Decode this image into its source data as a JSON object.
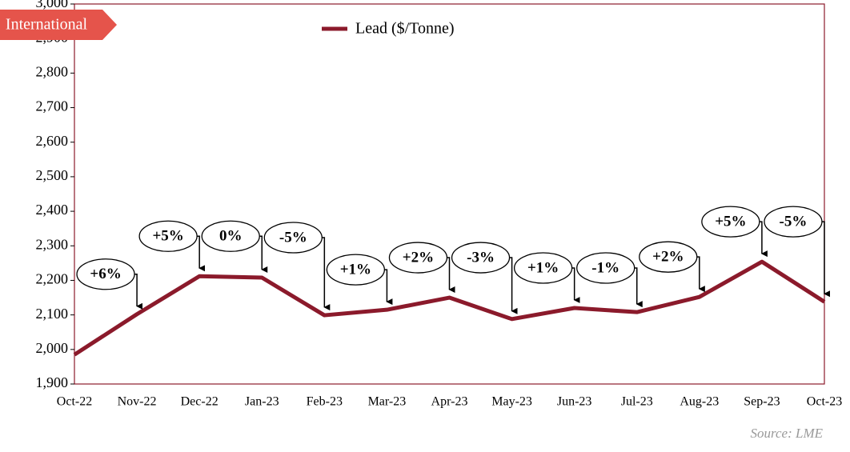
{
  "badge": "International",
  "source": "Source: LME",
  "chart_data": {
    "type": "line",
    "categories": [
      "Oct-22",
      "Nov-22",
      "Dec-22",
      "Jan-23",
      "Feb-23",
      "Mar-23",
      "Apr-23",
      "May-23",
      "Jun-23",
      "Jul-23",
      "Aug-23",
      "Sep-23",
      "Oct-23"
    ],
    "series": [
      {
        "name": "Lead ($/Tonne)",
        "color": "#8b1a2b",
        "values": [
          1985,
          2102,
          2212,
          2208,
          2099,
          2115,
          2150,
          2088,
          2120,
          2108,
          2152,
          2254,
          2138
        ]
      }
    ],
    "change_labels": [
      "+6%",
      "+5%",
      "0%",
      "-5%",
      "+1%",
      "+2%",
      "-3%",
      "+1%",
      "-1%",
      "+2%",
      "+5%",
      "-5%"
    ],
    "ylim": [
      1900,
      3000
    ],
    "yticks": [
      {
        "value": 1900,
        "label": "1,900"
      },
      {
        "value": 2000,
        "label": "2,000"
      },
      {
        "value": 2100,
        "label": "2,100"
      },
      {
        "value": 2200,
        "label": "2,200"
      },
      {
        "value": 2300,
        "label": "2,300"
      },
      {
        "value": 2400,
        "label": "2,400"
      },
      {
        "value": 2500,
        "label": "2,500"
      },
      {
        "value": 2600,
        "label": "2,600"
      },
      {
        "value": 2700,
        "label": "2,700"
      },
      {
        "value": 2800,
        "label": "2,800"
      },
      {
        "value": 2900,
        "label": "2,900"
      },
      {
        "value": 3000,
        "label": "3,000"
      }
    ],
    "legend": "top"
  }
}
